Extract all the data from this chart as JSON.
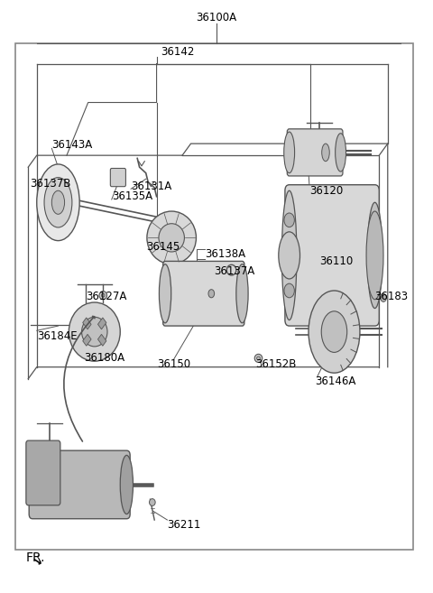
{
  "title": "",
  "background_color": "#ffffff",
  "border_color": "#888888",
  "text_color": "#000000",
  "line_color": "#555555",
  "part_number_top": "36100A",
  "figsize": [
    4.8,
    6.57
  ],
  "dpi": 100,
  "outer_border": [
    0.03,
    0.07,
    0.96,
    0.93
  ],
  "font_size": 8.5,
  "fr_font_size": 10
}
